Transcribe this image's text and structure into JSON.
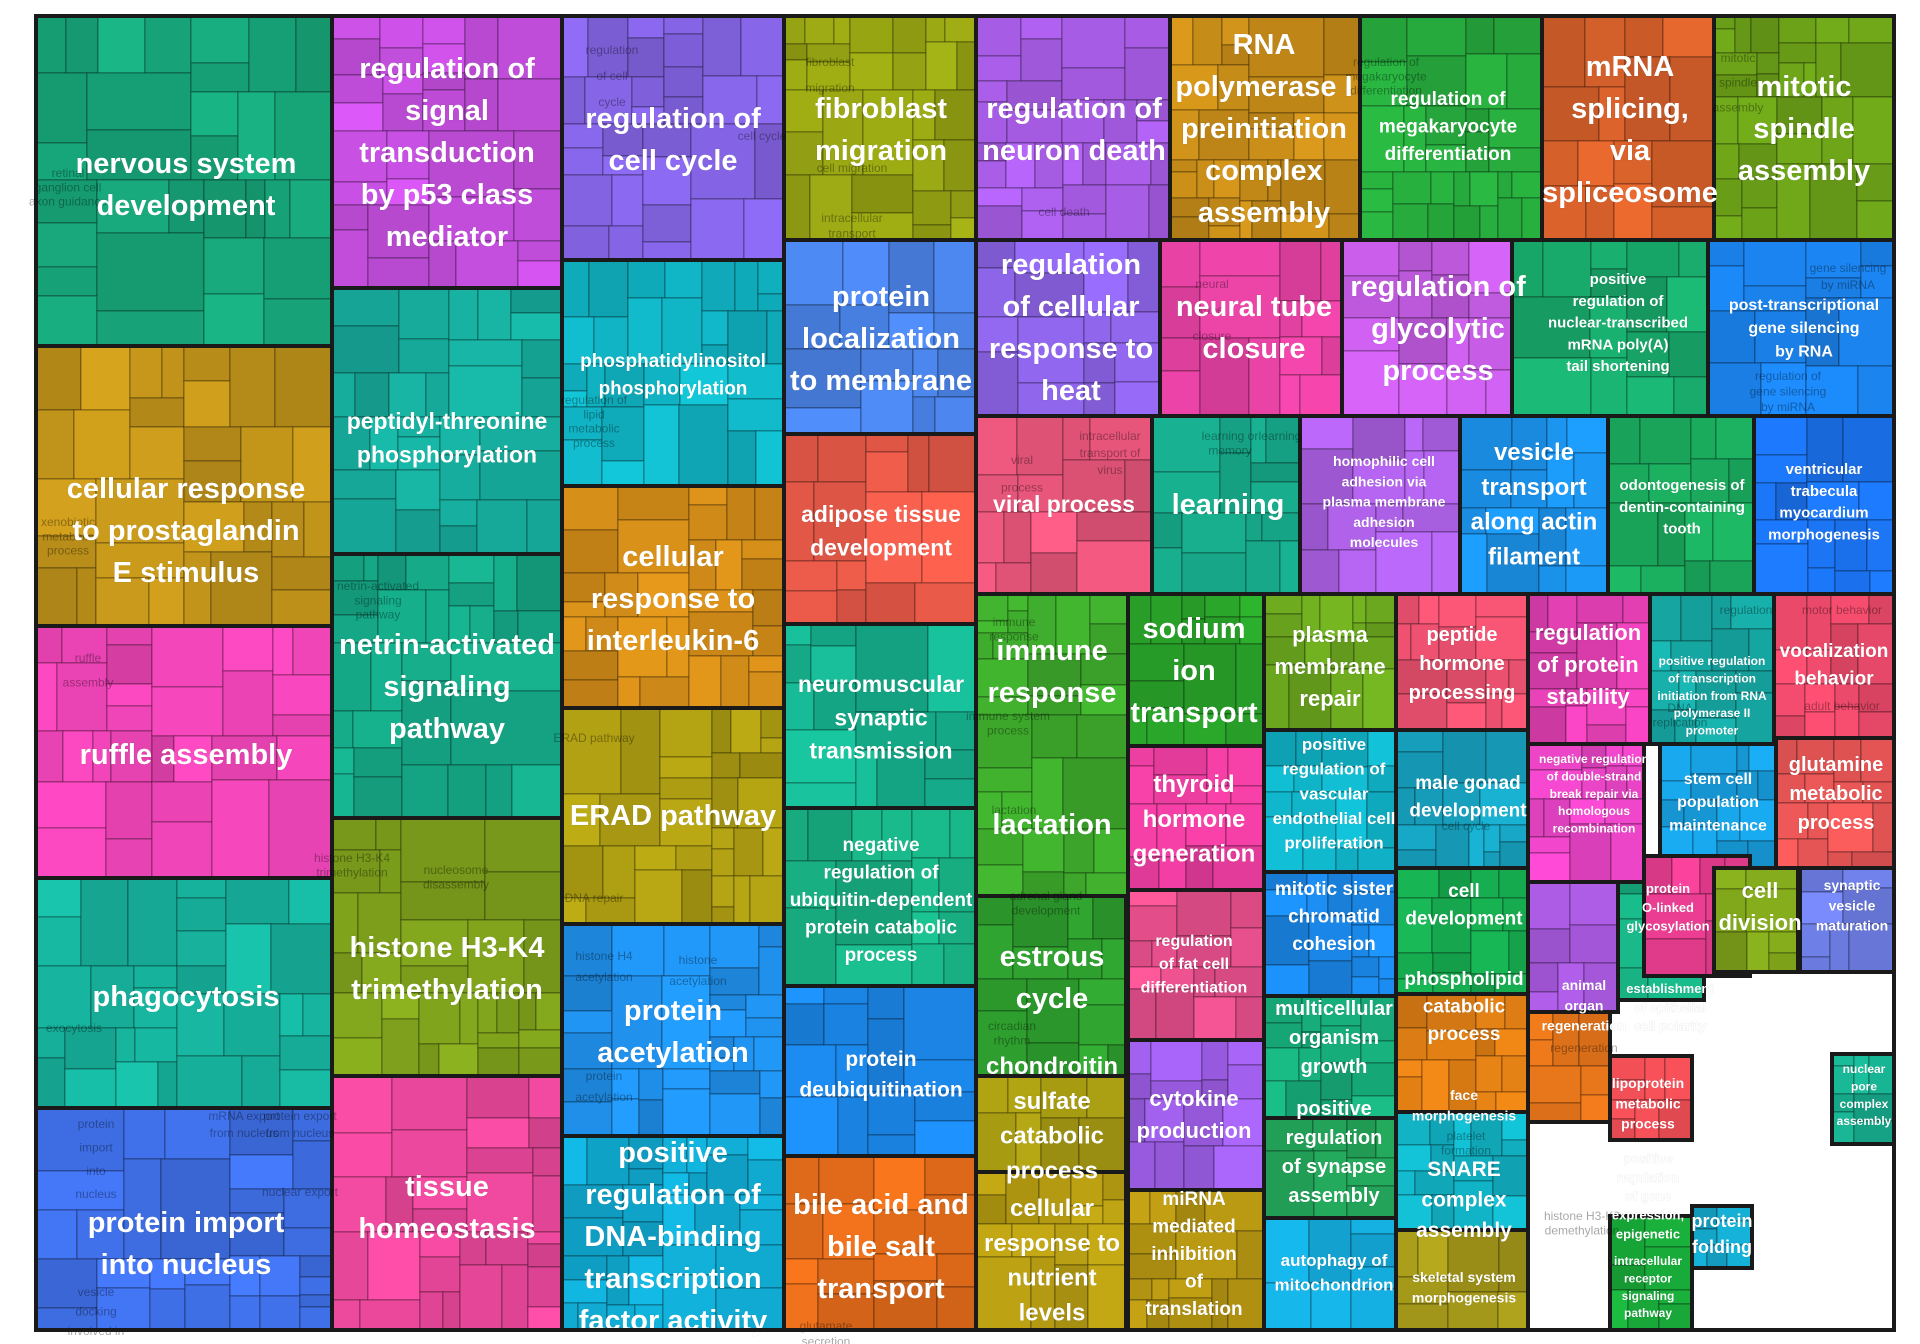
{
  "chart_data": {
    "type": "treemap",
    "title": "",
    "groups": [
      {
        "label": "nervous system development",
        "color": "#17a377",
        "subterms": [
          "retinal ganglion cell axon guidance"
        ]
      },
      {
        "label": "cellular response to prostaglandin E stimulus",
        "color": "#c0931a",
        "subterms": [
          "xenobiotic metabolic process"
        ]
      },
      {
        "label": "ruffle assembly",
        "color": "#e642b0",
        "subterms": [
          "ruffle assembly"
        ]
      },
      {
        "label": "phagocytosis",
        "color": "#17b49e",
        "subterms": [
          "exocytosis"
        ]
      },
      {
        "label": "protein import into nucleus",
        "color": "#3f6fe6",
        "subterms": [
          "protein import into nucleus",
          "mRNA export from nucleus",
          "protein export from nucleus",
          "nuclear export",
          "vesicle docking involved in exocytosis"
        ]
      },
      {
        "label": "regulation of signal transduction by p53 class mediator",
        "color": "#c64fe0",
        "subterms": []
      },
      {
        "label": "peptidyl-threonine phosphorylation",
        "color": "#16a99a",
        "subterms": []
      },
      {
        "label": "netrin-activated signaling pathway",
        "color": "#15a685",
        "subterms": [
          "netrin-activated signaling pathway"
        ]
      },
      {
        "label": "histone H3-K4 trimethylation",
        "color": "#7fa21c",
        "subterms": [
          "histone H3-K4 trimethylation",
          "nucleosome disassembly"
        ]
      },
      {
        "label": "tissue homeostasis",
        "color": "#e8479a",
        "subterms": []
      },
      {
        "label": "regulation of cell cycle",
        "color": "#8262e0",
        "subterms": [
          "regulation of cell cycle",
          "cell cycle"
        ]
      },
      {
        "label": "phosphatidylinositol phosphorylation",
        "color": "#10b2c2",
        "subterms": [
          "regulation of lipid metabolic process"
        ]
      },
      {
        "label": "cellular response to interleukin-6",
        "color": "#cf8a18",
        "subterms": []
      },
      {
        "label": "ERAD pathway",
        "color": "#aa9a12",
        "subterms": [
          "ERAD pathway",
          "DNA repair"
        ]
      },
      {
        "label": "protein acetylation",
        "color": "#1f8ee8",
        "subterms": [
          "histone H4 acetylation",
          "histone acetylation",
          "protein acetylation"
        ]
      },
      {
        "label": "positive regulation of DNA-binding transcription factor activity",
        "color": "#10a8cf",
        "subterms": []
      },
      {
        "label": "fibroblast migration",
        "color": "#95a213",
        "subterms": [
          "fibroblast migration",
          "cell migration",
          "intracellular transport"
        ]
      },
      {
        "label": "protein localization to membrane",
        "color": "#4a83e8",
        "subterms": []
      },
      {
        "label": "adipose tissue development",
        "color": "#e45847",
        "subterms": []
      },
      {
        "label": "neuromuscular synaptic transmission",
        "color": "#16b390",
        "subterms": []
      },
      {
        "label": "negative regulation of ubiquitin-dependent protein catabolic process",
        "color": "#18b184",
        "subterms": []
      },
      {
        "label": "protein deubiquitination",
        "color": "#1b86e8",
        "subterms": []
      },
      {
        "label": "bile acid and bile salt transport",
        "color": "#e06a1a",
        "subterms": [
          "glutamate secretion"
        ]
      },
      {
        "label": "regulation of neuron death",
        "color": "#a55be2",
        "subterms": [
          "cell death"
        ]
      },
      {
        "label": "regulation of cellular response to heat",
        "color": "#8b63e5",
        "subterms": []
      },
      {
        "label": "viral process",
        "color": "#e6557a",
        "subterms": [
          "viral process",
          "intracellular transport of virus"
        ]
      },
      {
        "label": "immune response",
        "color": "#3eaa2c",
        "subterms": [
          "immune response",
          "immune system process"
        ]
      },
      {
        "label": "lactation",
        "color": "#2e9f2e",
        "subterms": [
          "lactation",
          "adrenal gland development"
        ]
      },
      {
        "label": "estrous cycle",
        "color": "#a69a12",
        "subterms": [
          "circadian rhythm"
        ]
      },
      {
        "label": "chondroitin sulfate catabolic process",
        "color": "#b39a12",
        "subterms": []
      },
      {
        "label": "cellular response to nutrient levels",
        "color": "#c48a18",
        "subterms": []
      },
      {
        "label": "RNA polymerase I preinitiation complex assembly",
        "color": "#e0409f",
        "subterms": []
      },
      {
        "label": "neural tube closure",
        "color": "#17a98a",
        "subterms": [
          "neural tube closure"
        ]
      },
      {
        "label": "learning",
        "color": "#2aa62a",
        "subterms": [
          "learning or memory",
          "learning"
        ]
      },
      {
        "label": "sodium ion transport",
        "color": "#e63c9c",
        "subterms": []
      },
      {
        "label": "thyroid hormone generation",
        "color": "#e64f8c",
        "subterms": []
      },
      {
        "label": "regulation of fat cell differentiation",
        "color": "#9a5ce2",
        "subterms": []
      },
      {
        "label": "cytokine production",
        "color": "#b59512",
        "subterms": []
      },
      {
        "label": "miRNA mediated inhibition of translation",
        "color": "#26a83c",
        "subterms": []
      },
      {
        "label": "regulation of megakaryocyte differentiation",
        "color": "#c15ae0",
        "subterms": [
          "regulation of megakaryocyte differentiation"
        ]
      },
      {
        "label": "regulation of glycolytic process",
        "color": "#a85ee0",
        "subterms": []
      },
      {
        "label": "homophilic cell adhesion via plasma membrane adhesion molecules",
        "color": "#6aa51e",
        "subterms": []
      },
      {
        "label": "plasma membrane repair",
        "color": "#10b3c8",
        "subterms": []
      },
      {
        "label": "positive regulation of vascular endothelial cell proliferation",
        "color": "#1a86e6",
        "subterms": []
      },
      {
        "label": "mitotic sister chromatid cohesion",
        "color": "#17ab79",
        "subterms": []
      },
      {
        "label": "multicellular organism growth",
        "color": "#23a55a",
        "subterms": []
      },
      {
        "label": "positive regulation of synapse assembly",
        "color": "#14a8d8",
        "subterms": []
      },
      {
        "label": "autophagy of mitochondrion",
        "color": "#d45f2a",
        "subterms": []
      },
      {
        "label": "mRNA splicing, via spliceosome",
        "color": "#18a86a",
        "subterms": []
      },
      {
        "label": "positive regulation of nuclear-transcribed mRNA poly(A) tail shortening",
        "color": "#1a8fe6",
        "subterms": []
      },
      {
        "label": "vesicle transport along actin filament",
        "color": "#e8506e",
        "subterms": []
      },
      {
        "label": "peptide hormone processing",
        "color": "#17a2c0",
        "subterms": []
      },
      {
        "label": "male gonad development",
        "color": "#16a84e",
        "subterms": [
          "cell cycle"
        ]
      },
      {
        "label": "cell development",
        "color": "#dd7d14",
        "subterms": []
      },
      {
        "label": "phospholipid catabolic process",
        "color": "#11b1c3",
        "subterms": []
      },
      {
        "label": "face morphogenesis",
        "color": "#a3971a",
        "subterms": [
          "platelet formation"
        ]
      },
      {
        "label": "SNARE complex assembly",
        "color": "#e13fb2",
        "subterms": []
      },
      {
        "label": "skeletal system morphogenesis",
        "color": "#e643c3",
        "subterms": []
      },
      {
        "label": "regulation of protein stability",
        "color": "#a95ae0",
        "subterms": []
      },
      {
        "label": "negative regulation of double-strand break repair via homologous recombination",
        "color": "#17ad80",
        "subterms": []
      },
      {
        "label": "animal organ regeneration",
        "color": "#e44a52",
        "subterms": [
          "regeneration"
        ]
      },
      {
        "label": "establishment of epithelial cell polarity",
        "color": "#e0721a",
        "subterms": []
      },
      {
        "label": "lipoprotein metabolic process",
        "color": "#18a838",
        "subterms": []
      },
      {
        "label": "positive regulation of gene expression, epigenetic",
        "color": "#14a8cc",
        "subterms": [
          "histone H3-K9 demethylation"
        ]
      },
      {
        "label": "intracellular receptor signaling pathway",
        "color": "#6a9f18",
        "subterms": []
      },
      {
        "label": "protein folding",
        "color": "#1a7fe6",
        "subterms": []
      },
      {
        "label": "mitotic spindle assembly",
        "color": "#1aa85c",
        "subterms": [
          "mitotic spindle assembly"
        ]
      },
      {
        "label": "post-transcriptional gene silencing by RNA",
        "color": "#1a6fe8",
        "subterms": [
          "gene silencing by miRNA",
          "regulation of gene silencing by miRNA"
        ]
      },
      {
        "label": "odontogenesis of dentin-containing tooth",
        "color": "#17aaa6",
        "subterms": []
      },
      {
        "label": "ventricular trabecula myocardium morphogenesis",
        "color": "#e64868",
        "subterms": []
      },
      {
        "label": "positive regulation of transcription initiation from RNA polymerase II promoter",
        "color": "#179fe0",
        "subterms": [
          "regulation",
          "DNA replication"
        ]
      },
      {
        "label": "vocalization behavior",
        "color": "#e65555",
        "subterms": [
          "motor behavior",
          "adult behavior"
        ]
      },
      {
        "label": "stem cell population maintenance",
        "color": "#e83d90",
        "subterms": []
      },
      {
        "label": "glutamine metabolic process",
        "color": "#7da21a",
        "subterms": []
      },
      {
        "label": "protein O-linked glycosylation",
        "color": "#6e7ee6",
        "subterms": []
      },
      {
        "label": "cell division",
        "color": "#d68a16",
        "subterms": []
      },
      {
        "label": "synaptic vesicle maturation",
        "color": "#e641a8",
        "subterms": []
      },
      {
        "label": "nuclear pore complex assembly",
        "color": "#17ab8c",
        "subterms": []
      }
    ]
  }
}
